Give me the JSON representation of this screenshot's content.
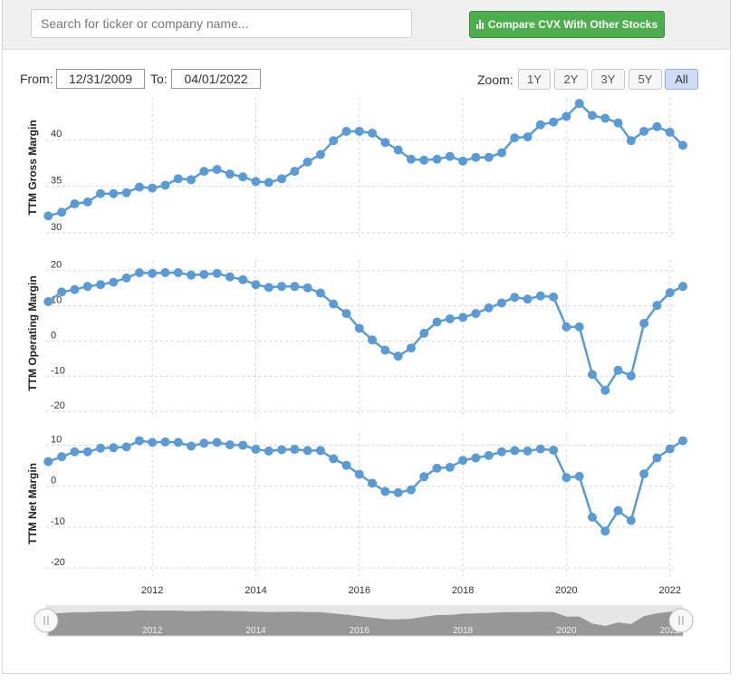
{
  "search": {
    "placeholder": "Search for ticker or company name..."
  },
  "compare_button": {
    "label": "Compare CVX With Other Stocks",
    "icon": "bar-chart-icon",
    "color": "#4cae4c"
  },
  "range": {
    "from_label": "From:",
    "from_value": "12/31/2009",
    "to_label": "To:",
    "to_value": "04/01/2022"
  },
  "zoom": {
    "label": "Zoom:",
    "options": [
      "1Y",
      "2Y",
      "3Y",
      "5Y",
      "All"
    ],
    "selected": "All"
  },
  "colors": {
    "series": "#5b9bd5",
    "navigator_fill": "#888888"
  },
  "chart_data": {
    "type": "line",
    "x_axis": {
      "ticks": [
        "2012",
        "2014",
        "2016",
        "2018",
        "2020",
        "2022"
      ],
      "range": [
        2009.95,
        2022.25
      ]
    },
    "x": [
      2009.99,
      2010.25,
      2010.5,
      2010.75,
      2011.0,
      2011.25,
      2011.5,
      2011.75,
      2012.0,
      2012.25,
      2012.5,
      2012.75,
      2013.0,
      2013.25,
      2013.5,
      2013.75,
      2014.0,
      2014.25,
      2014.5,
      2014.75,
      2015.0,
      2015.25,
      2015.5,
      2015.75,
      2016.0,
      2016.25,
      2016.5,
      2016.75,
      2017.0,
      2017.25,
      2017.5,
      2017.75,
      2018.0,
      2018.25,
      2018.5,
      2018.75,
      2019.0,
      2019.25,
      2019.5,
      2019.75,
      2020.0,
      2020.25,
      2020.5,
      2020.75,
      2021.0,
      2021.25,
      2021.5,
      2021.75,
      2022.0,
      2022.25
    ],
    "panels": [
      {
        "ylabel": "TTM Gross Margin",
        "yticks": [
          "40",
          "35",
          "30"
        ],
        "ylim": [
          29.5,
          44.5
        ],
        "values": [
          31.8,
          32.2,
          33.1,
          33.3,
          34.2,
          34.2,
          34.3,
          34.9,
          34.8,
          35.1,
          35.8,
          35.7,
          36.6,
          36.8,
          36.3,
          36.0,
          35.5,
          35.4,
          35.8,
          36.6,
          37.6,
          38.4,
          39.9,
          40.9,
          40.9,
          40.7,
          39.7,
          38.9,
          37.9,
          37.8,
          37.9,
          38.2,
          37.7,
          38.1,
          38.1,
          38.6,
          40.2,
          40.3,
          41.6,
          41.9,
          42.5,
          43.9,
          42.6,
          42.3,
          41.8,
          39.9,
          40.9,
          41.4,
          40.8,
          39.4
        ]
      },
      {
        "ylabel": "TTM Operating Margin",
        "yticks": [
          "20",
          "10",
          "0",
          "-10",
          "-20"
        ],
        "ylim": [
          -22,
          23
        ],
        "values": [
          11.2,
          13.9,
          14.6,
          15.5,
          16.0,
          16.7,
          17.9,
          19.4,
          19.2,
          19.4,
          19.4,
          18.7,
          18.9,
          19.2,
          18.2,
          17.4,
          16.0,
          15.2,
          15.5,
          15.5,
          15.1,
          13.6,
          10.5,
          7.8,
          3.6,
          0.3,
          -2.6,
          -4.3,
          -2.0,
          2.2,
          5.4,
          6.3,
          6.7,
          7.8,
          9.4,
          10.8,
          12.4,
          11.9,
          12.8,
          12.5,
          4.0,
          4.0,
          -9.5,
          -14.0,
          -8.3,
          -9.9,
          5.0,
          10.1,
          13.7,
          15.5
        ]
      },
      {
        "ylabel": "TTM Net Margin",
        "yticks": [
          "10",
          "0",
          "-10",
          "-20"
        ],
        "ylim": [
          -22,
          13
        ],
        "values": [
          6.0,
          7.2,
          8.4,
          8.4,
          9.3,
          9.4,
          9.6,
          11.1,
          10.7,
          10.8,
          10.7,
          9.8,
          10.5,
          10.7,
          10.1,
          10.0,
          9.0,
          8.6,
          8.9,
          9.0,
          8.7,
          8.7,
          6.7,
          5.1,
          2.9,
          0.7,
          -1.3,
          -1.6,
          -0.9,
          2.3,
          4.4,
          4.6,
          6.3,
          6.9,
          7.5,
          8.4,
          8.7,
          8.6,
          9.1,
          8.8,
          2.1,
          2.4,
          -7.6,
          -11.0,
          -6.0,
          -8.4,
          3.0,
          6.9,
          9.1,
          11.1
        ]
      }
    ]
  }
}
